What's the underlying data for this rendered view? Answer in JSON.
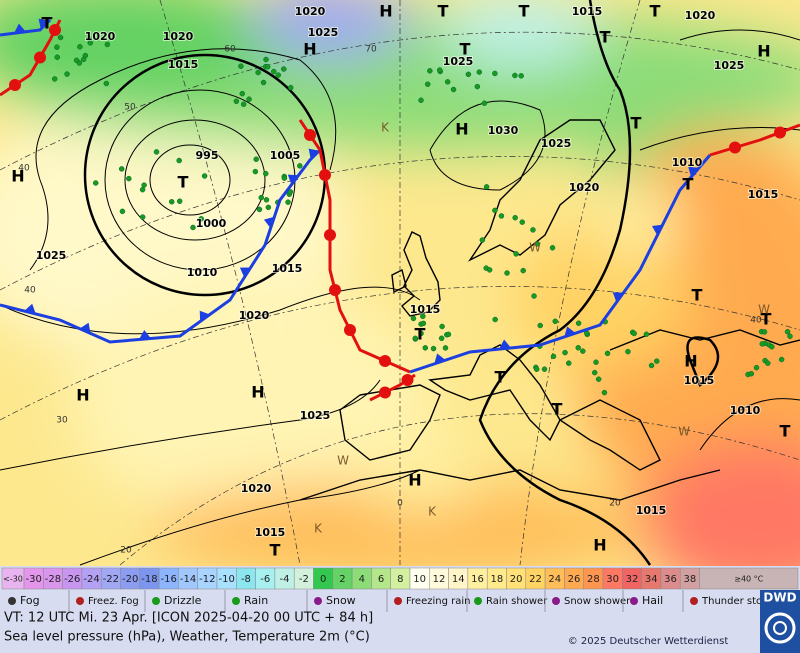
{
  "map": {
    "isobar_labels": [
      "1020",
      "1020",
      "1020",
      "1015",
      "1025",
      "1015",
      "1020",
      "1025",
      "1025",
      "1030",
      "1025",
      "995",
      "1005",
      "1010",
      "1020",
      "1015",
      "1000",
      "1025",
      "1010",
      "1015",
      "1020",
      "1015",
      "1015",
      "1010",
      "1025",
      "1020",
      "1015",
      "1015"
    ],
    "latitude_labels": [
      "60",
      "70",
      "50",
      "40",
      "40",
      "30",
      "20",
      "40",
      "20",
      "0"
    ],
    "pressure_centers": [
      "H",
      "T",
      "T",
      "T",
      "T",
      "H",
      "T",
      "H",
      "T",
      "H",
      "T",
      "T",
      "H",
      "T",
      "K",
      "T",
      "T",
      "H",
      "H",
      "H",
      "T",
      "T",
      "T",
      "H",
      "H",
      "T",
      "K",
      "K",
      "W",
      "W",
      "W",
      "W",
      "T"
    ]
  },
  "temperature_scale": {
    "low_label": "<-30",
    "low_color": "#e8b4f0",
    "steps": [
      {
        "value": -30,
        "color": "#e496ec"
      },
      {
        "value": -28,
        "color": "#d896ec"
      },
      {
        "value": -26,
        "color": "#c896f0"
      },
      {
        "value": -24,
        "color": "#b4a0f4"
      },
      {
        "value": -22,
        "color": "#a0a8f4"
      },
      {
        "value": -20,
        "color": "#8c9cf0"
      },
      {
        "value": -18,
        "color": "#7c96f0"
      },
      {
        "value": -16,
        "color": "#8cb4ff"
      },
      {
        "value": -14,
        "color": "#a0c8ff"
      },
      {
        "value": -12,
        "color": "#a8d4ff"
      },
      {
        "value": -10,
        "color": "#a8e0ff"
      },
      {
        "value": -8,
        "color": "#8ce6f0"
      },
      {
        "value": -6,
        "color": "#a8f0f0"
      },
      {
        "value": -4,
        "color": "#bef0e6"
      },
      {
        "value": -2,
        "color": "#d2f0dc"
      },
      {
        "value": 0,
        "color": "#32c850"
      },
      {
        "value": 2,
        "color": "#64d264"
      },
      {
        "value": 4,
        "color": "#8cdc78"
      },
      {
        "value": 6,
        "color": "#b4e68c"
      },
      {
        "value": 8,
        "color": "#d2f0a0"
      },
      {
        "value": 10,
        "color": "#fffff0"
      },
      {
        "value": 12,
        "color": "#fffadc"
      },
      {
        "value": 14,
        "color": "#fff5c8"
      },
      {
        "value": 16,
        "color": "#fff0a0"
      },
      {
        "value": 18,
        "color": "#ffeb8c"
      },
      {
        "value": 20,
        "color": "#ffe178"
      },
      {
        "value": 22,
        "color": "#ffd264"
      },
      {
        "value": 24,
        "color": "#ffbe5a"
      },
      {
        "value": 26,
        "color": "#ffaa50"
      },
      {
        "value": 28,
        "color": "#ff9650"
      },
      {
        "value": 30,
        "color": "#ff7864"
      },
      {
        "value": 32,
        "color": "#f06464"
      },
      {
        "value": 34,
        "color": "#e6786e"
      },
      {
        "value": 36,
        "color": "#dc8c8c"
      },
      {
        "value": 38,
        "color": "#d2a0a0"
      }
    ],
    "high_label": "≥40 °C",
    "high_color": "#c8b4b4"
  },
  "weather_legend": [
    "Fog",
    "Freez. Fog",
    "Drizzle",
    "Rain",
    "Snow",
    "Freezing rain",
    "Rain shower",
    "Snow shower",
    "Hail",
    "Thunder storm"
  ],
  "footer": {
    "valid_time": "VT: 12 UTC Mi.  23 Apr. [ICON 2025-04-20  00 UTC + 84 h]",
    "description": "Sea level pressure (hPa), Weather, Temperature 2m (°C)",
    "copyright": "© 2025 Deutscher Wetterdienst",
    "logo": "DWD"
  }
}
